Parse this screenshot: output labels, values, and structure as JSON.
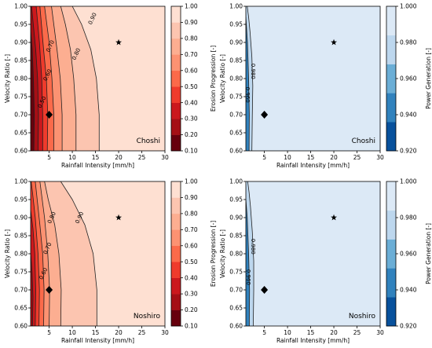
{
  "chart_data": [
    {
      "type": "contour",
      "location": "Choshi",
      "xlabel": "Rainfall Intensity [mm/h]",
      "ylabel": "Velocity Ratio [-]",
      "colorbar_label": "Erosion Progression [-]",
      "colormap": "Reds_r",
      "xlim": [
        1,
        30
      ],
      "ylim": [
        0.6,
        1.0
      ],
      "xticks": [
        "5",
        "10",
        "15",
        "20",
        "25",
        "30"
      ],
      "yticks": [
        "0.60",
        "0.65",
        "0.70",
        "0.75",
        "0.80",
        "0.85",
        "0.90",
        "0.95",
        "1.00"
      ],
      "colorbar_ticks": [
        "0.10",
        "0.20",
        "0.30",
        "0.40",
        "0.50",
        "0.60",
        "0.70",
        "0.80",
        "0.90",
        "1.00"
      ],
      "colorbar_range": [
        0.1,
        1.0
      ],
      "colorbar_colors": [
        "#67000d",
        "#a50f15",
        "#cb181d",
        "#ef3b2c",
        "#fb6a4a",
        "#fc9272",
        "#fcae91",
        "#fcc5b0",
        "#fee0d2"
      ],
      "contours": [
        {
          "level": 0.2,
          "label": "",
          "points": [
            [
              1.7,
              0.6
            ],
            [
              1.8,
              0.7
            ],
            [
              1.6,
              0.8
            ],
            [
              1.35,
              0.88
            ],
            [
              1,
              0.93
            ]
          ]
        },
        {
          "level": 0.3,
          "label": "",
          "points": [
            [
              2.6,
              0.6
            ],
            [
              2.7,
              0.7
            ],
            [
              2.5,
              0.8
            ],
            [
              2.1,
              0.88
            ],
            [
              1.5,
              0.96
            ],
            [
              1.2,
              1.0
            ]
          ]
        },
        {
          "level": 0.4,
          "label": "",
          "points": [
            [
              3.6,
              0.6
            ],
            [
              3.6,
              0.7
            ],
            [
              3.4,
              0.8
            ],
            [
              2.9,
              0.9
            ],
            [
              2.2,
              1.0
            ]
          ]
        },
        {
          "level": 0.5,
          "label": "0.50",
          "label_at": [
            3.4,
            0.735
          ],
          "points": [
            [
              4.6,
              0.6
            ],
            [
              4.7,
              0.7
            ],
            [
              4.4,
              0.8
            ],
            [
              3.8,
              0.88
            ],
            [
              3.0,
              1.0
            ]
          ]
        },
        {
          "level": 0.6,
          "label": "0.60",
          "label_at": [
            4.6,
            0.81
          ],
          "points": [
            [
              6.0,
              0.6
            ],
            [
              6.0,
              0.7
            ],
            [
              5.6,
              0.8
            ],
            [
              5.0,
              0.9
            ],
            [
              4.0,
              1.0
            ]
          ]
        },
        {
          "level": 0.7,
          "label": "0.70",
          "label_at": [
            5.2,
            0.89
          ],
          "points": [
            [
              7.8,
              0.6
            ],
            [
              7.8,
              0.7
            ],
            [
              7.4,
              0.8
            ],
            [
              6.7,
              0.88
            ],
            [
              5.5,
              1.0
            ]
          ]
        },
        {
          "level": 0.8,
          "label": "0.80",
          "label_at": [
            10.8,
            0.868
          ],
          "points": [
            [
              10.8,
              0.6
            ],
            [
              10.8,
              0.7
            ],
            [
              10.3,
              0.8
            ],
            [
              9.6,
              0.88
            ],
            [
              8.5,
              0.95
            ],
            [
              7.5,
              1.0
            ]
          ]
        },
        {
          "level": 0.9,
          "label": "0.90",
          "label_at": [
            14.3,
            0.966
          ],
          "points": [
            [
              15.8,
              0.6
            ],
            [
              15.8,
              0.7
            ],
            [
              15.2,
              0.8
            ],
            [
              14.0,
              0.88
            ],
            [
              12.0,
              0.95
            ],
            [
              10.0,
              1.0
            ]
          ]
        }
      ],
      "markers": [
        {
          "shape": "star",
          "x": 20,
          "y": 0.9
        },
        {
          "shape": "diamond",
          "x": 5,
          "y": 0.7
        }
      ]
    },
    {
      "type": "contour",
      "location": "Choshi",
      "xlabel": "Rainfall Intensity [mm/h]",
      "ylabel": "Velocity Ratio [-]",
      "colorbar_label": "Power Generation [-]",
      "colormap": "Blues_r",
      "xlim": [
        1,
        30
      ],
      "ylim": [
        0.6,
        1.0
      ],
      "xticks": [
        "5",
        "10",
        "15",
        "20",
        "25",
        "30"
      ],
      "yticks": [
        "0.60",
        "0.65",
        "0.70",
        "0.75",
        "0.80",
        "0.85",
        "0.90",
        "0.95",
        "1.00"
      ],
      "colorbar_ticks": [
        "0.920",
        "0.940",
        "0.960",
        "0.980",
        "1.000"
      ],
      "colorbar_range": [
        0.92,
        1.0
      ],
      "colorbar_colors": [
        "#08519c",
        "#3182bd",
        "#6baed6",
        "#bdd7ee",
        "#dce9f6"
      ],
      "contours": [
        {
          "level": 0.96,
          "label": "0.960",
          "label_at": [
            1.4,
            0.755
          ],
          "points": [
            [
              1.7,
              0.6
            ],
            [
              1.75,
              0.7
            ],
            [
              1.6,
              0.8
            ],
            [
              1.35,
              0.9
            ],
            [
              1.0,
              0.97
            ]
          ]
        },
        {
          "level": 0.98,
          "label": "0.980",
          "label_at": [
            2.6,
            0.82
          ],
          "points": [
            [
              2.3,
              0.6
            ],
            [
              2.4,
              0.7
            ],
            [
              2.5,
              0.78
            ],
            [
              2.3,
              0.86
            ],
            [
              1.9,
              0.93
            ],
            [
              1.6,
              0.97
            ],
            [
              1.3,
              1.0
            ]
          ]
        }
      ],
      "markers": [
        {
          "shape": "star",
          "x": 20,
          "y": 0.9
        },
        {
          "shape": "diamond",
          "x": 5,
          "y": 0.7
        }
      ]
    },
    {
      "type": "contour",
      "location": "Noshiro",
      "xlabel": "Rainfall Intensity [mm/h]",
      "ylabel": "Velocity Ratio [-]",
      "colorbar_label": "Erosion Progression [-]",
      "colormap": "Reds_r",
      "xlim": [
        1,
        30
      ],
      "ylim": [
        0.6,
        1.0
      ],
      "xticks": [
        "5",
        "10",
        "15",
        "20",
        "25",
        "30"
      ],
      "yticks": [
        "0.60",
        "0.65",
        "0.70",
        "0.75",
        "0.80",
        "0.85",
        "0.90",
        "0.95",
        "1.00"
      ],
      "colorbar_ticks": [
        "0.10",
        "0.20",
        "0.30",
        "0.40",
        "0.50",
        "0.60",
        "0.70",
        "0.80",
        "0.90",
        "1.00"
      ],
      "colorbar_range": [
        0.1,
        1.0
      ],
      "colorbar_colors": [
        "#67000d",
        "#a50f15",
        "#cb181d",
        "#ef3b2c",
        "#fb6a4a",
        "#fc9272",
        "#fcae91",
        "#fcc5b0",
        "#fee0d2"
      ],
      "contours": [
        {
          "level": 0.3,
          "label": "",
          "points": [
            [
              1.4,
              0.6
            ],
            [
              1.5,
              0.68
            ],
            [
              1.3,
              0.75
            ],
            [
              1.0,
              0.8
            ]
          ]
        },
        {
          "level": 0.4,
          "label": "",
          "points": [
            [
              2.0,
              0.6
            ],
            [
              2.1,
              0.7
            ],
            [
              1.9,
              0.8
            ],
            [
              1.5,
              0.87
            ],
            [
              1.0,
              0.92
            ]
          ]
        },
        {
          "level": 0.5,
          "label": "",
          "points": [
            [
              2.8,
              0.6
            ],
            [
              2.9,
              0.7
            ],
            [
              2.6,
              0.8
            ],
            [
              2.0,
              0.9
            ],
            [
              1.4,
              0.97
            ],
            [
              1.1,
              1.0
            ]
          ]
        },
        {
          "level": 0.6,
          "label": "0.60",
          "label_at": [
            3.7,
            0.745
          ],
          "points": [
            [
              3.8,
              0.6
            ],
            [
              3.9,
              0.7
            ],
            [
              3.6,
              0.8
            ],
            [
              3.0,
              0.88
            ],
            [
              2.0,
              1.0
            ]
          ]
        },
        {
          "level": 0.7,
          "label": "0.70",
          "label_at": [
            4.6,
            0.815
          ],
          "points": [
            [
              5.0,
              0.6
            ],
            [
              5.1,
              0.7
            ],
            [
              4.7,
              0.8
            ],
            [
              4.0,
              0.9
            ],
            [
              3.0,
              1.0
            ]
          ]
        },
        {
          "level": 0.8,
          "label": "0.80",
          "label_at": [
            5.5,
            0.9
          ],
          "points": [
            [
              7.5,
              0.6
            ],
            [
              7.6,
              0.7
            ],
            [
              7.1,
              0.8
            ],
            [
              6.2,
              0.88
            ],
            [
              4.8,
              0.95
            ],
            [
              4.0,
              1.0
            ]
          ]
        },
        {
          "level": 0.9,
          "label": "0.90",
          "label_at": [
            11.5,
            0.9
          ],
          "points": [
            [
              15.3,
              0.6
            ],
            [
              15.3,
              0.7
            ],
            [
              14.5,
              0.8
            ],
            [
              12.7,
              0.88
            ],
            [
              10.0,
              0.95
            ],
            [
              7.5,
              1.0
            ]
          ]
        }
      ],
      "markers": [
        {
          "shape": "star",
          "x": 20,
          "y": 0.9
        },
        {
          "shape": "diamond",
          "x": 5,
          "y": 0.7
        }
      ]
    },
    {
      "type": "contour",
      "location": "Noshiro",
      "xlabel": "Rainfall Intensity [mm/h]",
      "ylabel": "Velocity Ratio [-]",
      "colorbar_label": "Power Generation [-]",
      "colormap": "Blues_r",
      "xlim": [
        1,
        30
      ],
      "ylim": [
        0.6,
        1.0
      ],
      "xticks": [
        "5",
        "10",
        "15",
        "20",
        "25",
        "30"
      ],
      "yticks": [
        "0.60",
        "0.65",
        "0.70",
        "0.75",
        "0.80",
        "0.85",
        "0.90",
        "0.95",
        "1.00"
      ],
      "colorbar_ticks": [
        "0.920",
        "0.940",
        "0.960",
        "0.980",
        "1.000"
      ],
      "colorbar_range": [
        0.92,
        1.0
      ],
      "colorbar_colors": [
        "#08519c",
        "#3182bd",
        "#6baed6",
        "#bdd7ee",
        "#dce9f6"
      ],
      "contours": [
        {
          "level": 0.96,
          "label": "0.960",
          "label_at": [
            1.6,
            0.735
          ],
          "points": [
            [
              1.75,
              0.6
            ],
            [
              1.8,
              0.7
            ],
            [
              1.6,
              0.8
            ],
            [
              1.3,
              0.9
            ],
            [
              1.0,
              0.95
            ]
          ]
        },
        {
          "level": 0.98,
          "label": "0.980",
          "label_at": [
            2.6,
            0.82
          ],
          "points": [
            [
              2.6,
              0.6
            ],
            [
              2.7,
              0.7
            ],
            [
              2.7,
              0.78
            ],
            [
              2.4,
              0.86
            ],
            [
              2.0,
              0.93
            ],
            [
              1.7,
              0.97
            ],
            [
              1.4,
              1.0
            ]
          ]
        }
      ],
      "markers": [
        {
          "shape": "star",
          "x": 20,
          "y": 0.9
        },
        {
          "shape": "diamond",
          "x": 5,
          "y": 0.7
        }
      ]
    }
  ]
}
